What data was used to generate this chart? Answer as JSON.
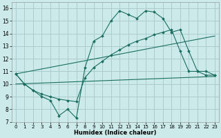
{
  "xlabel": "Humidex (Indice chaleur)",
  "background_color": "#cceaea",
  "grid_color": "#aacccc",
  "line_color": "#1a6e60",
  "xlim": [
    -0.5,
    23.5
  ],
  "ylim": [
    7,
    16.5
  ],
  "xticks": [
    0,
    1,
    2,
    3,
    4,
    5,
    6,
    7,
    8,
    9,
    10,
    11,
    12,
    13,
    14,
    15,
    16,
    17,
    18,
    19,
    20,
    21,
    22,
    23
  ],
  "yticks": [
    7,
    8,
    9,
    10,
    11,
    12,
    13,
    14,
    15,
    16
  ],
  "series": [
    {
      "x": [
        0,
        1,
        2,
        3,
        4,
        5,
        6,
        7,
        8,
        9,
        10,
        11,
        12,
        13,
        14,
        15,
        16,
        17,
        18,
        19,
        20,
        21,
        22,
        23
      ],
      "y": [
        10.8,
        10.0,
        9.5,
        9.0,
        8.7,
        7.5,
        8.0,
        7.3,
        11.3,
        13.4,
        13.8,
        15.0,
        15.8,
        15.5,
        15.2,
        15.8,
        15.7,
        15.2,
        14.1,
        14.3,
        12.6,
        11.0,
        11.0,
        10.7
      ],
      "markers": true
    },
    {
      "x": [
        0,
        1,
        2,
        3,
        4,
        5,
        6,
        7,
        8,
        9,
        10,
        11,
        12,
        13,
        14,
        15,
        16,
        17,
        18,
        19,
        20,
        21,
        22,
        23
      ],
      "y": [
        10.8,
        10.0,
        9.5,
        9.2,
        9.0,
        8.8,
        8.7,
        8.6,
        10.5,
        11.3,
        11.8,
        12.3,
        12.7,
        13.1,
        13.4,
        13.6,
        13.9,
        14.1,
        14.3,
        12.6,
        11.0,
        11.0,
        10.7,
        10.7
      ],
      "markers": true
    },
    {
      "x": [
        0,
        23
      ],
      "y": [
        10.0,
        10.6
      ],
      "markers": false
    },
    {
      "x": [
        0,
        23
      ],
      "y": [
        10.8,
        13.8
      ],
      "markers": false
    }
  ]
}
